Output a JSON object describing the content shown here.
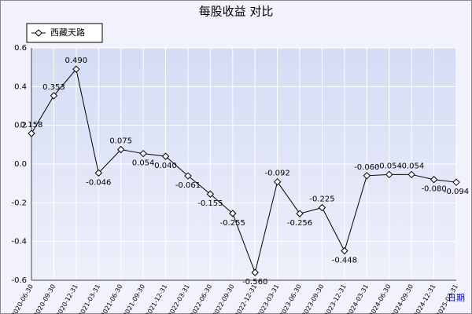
{
  "chart_data": {
    "type": "line",
    "title": "每股收益  对比",
    "x_label": "日期",
    "categories": [
      "2020-06-30",
      "2020-09-30",
      "2020-12-31",
      "2021-03-31",
      "2021-06-30",
      "2021-09-30",
      "2021-12-31",
      "2022-03-31",
      "2022-06-30",
      "2022-09-30",
      "2022-12-31",
      "2023-03-31",
      "2023-06-30",
      "2023-09-30",
      "2023-12-31",
      "2024-03-31",
      "2024-06-30",
      "2024-09-30",
      "2024-12-31",
      "2025-03-31"
    ],
    "series": [
      {
        "name": "西藏天路",
        "color": "#000000",
        "values": [
          0.158,
          0.353,
          0.49,
          -0.046,
          0.075,
          0.054,
          0.04,
          -0.061,
          -0.155,
          -0.255,
          -0.56,
          -0.092,
          -0.256,
          -0.225,
          -0.448,
          -0.06,
          -0.054,
          -0.054,
          -0.08,
          -0.094
        ],
        "value_labels": [
          "0.158",
          "0.353",
          "0.490",
          "-0.046",
          "0.075",
          "0.054",
          "0.040",
          "-0.061",
          "-0.155",
          "-0.255",
          "-0.560",
          "-0.092",
          "-0.256",
          "-0.225",
          "-0.448",
          "-0.060",
          "-0.054",
          "-0.054",
          "-0.080",
          "-0.094"
        ]
      }
    ],
    "ylim": [
      -0.6,
      0.6
    ],
    "yticks": [
      0.6,
      0.4,
      0.2,
      {
        "value": 0,
        "label": "0.0"
      },
      -0.2,
      -0.4,
      -0.6
    ],
    "grid": true
  }
}
